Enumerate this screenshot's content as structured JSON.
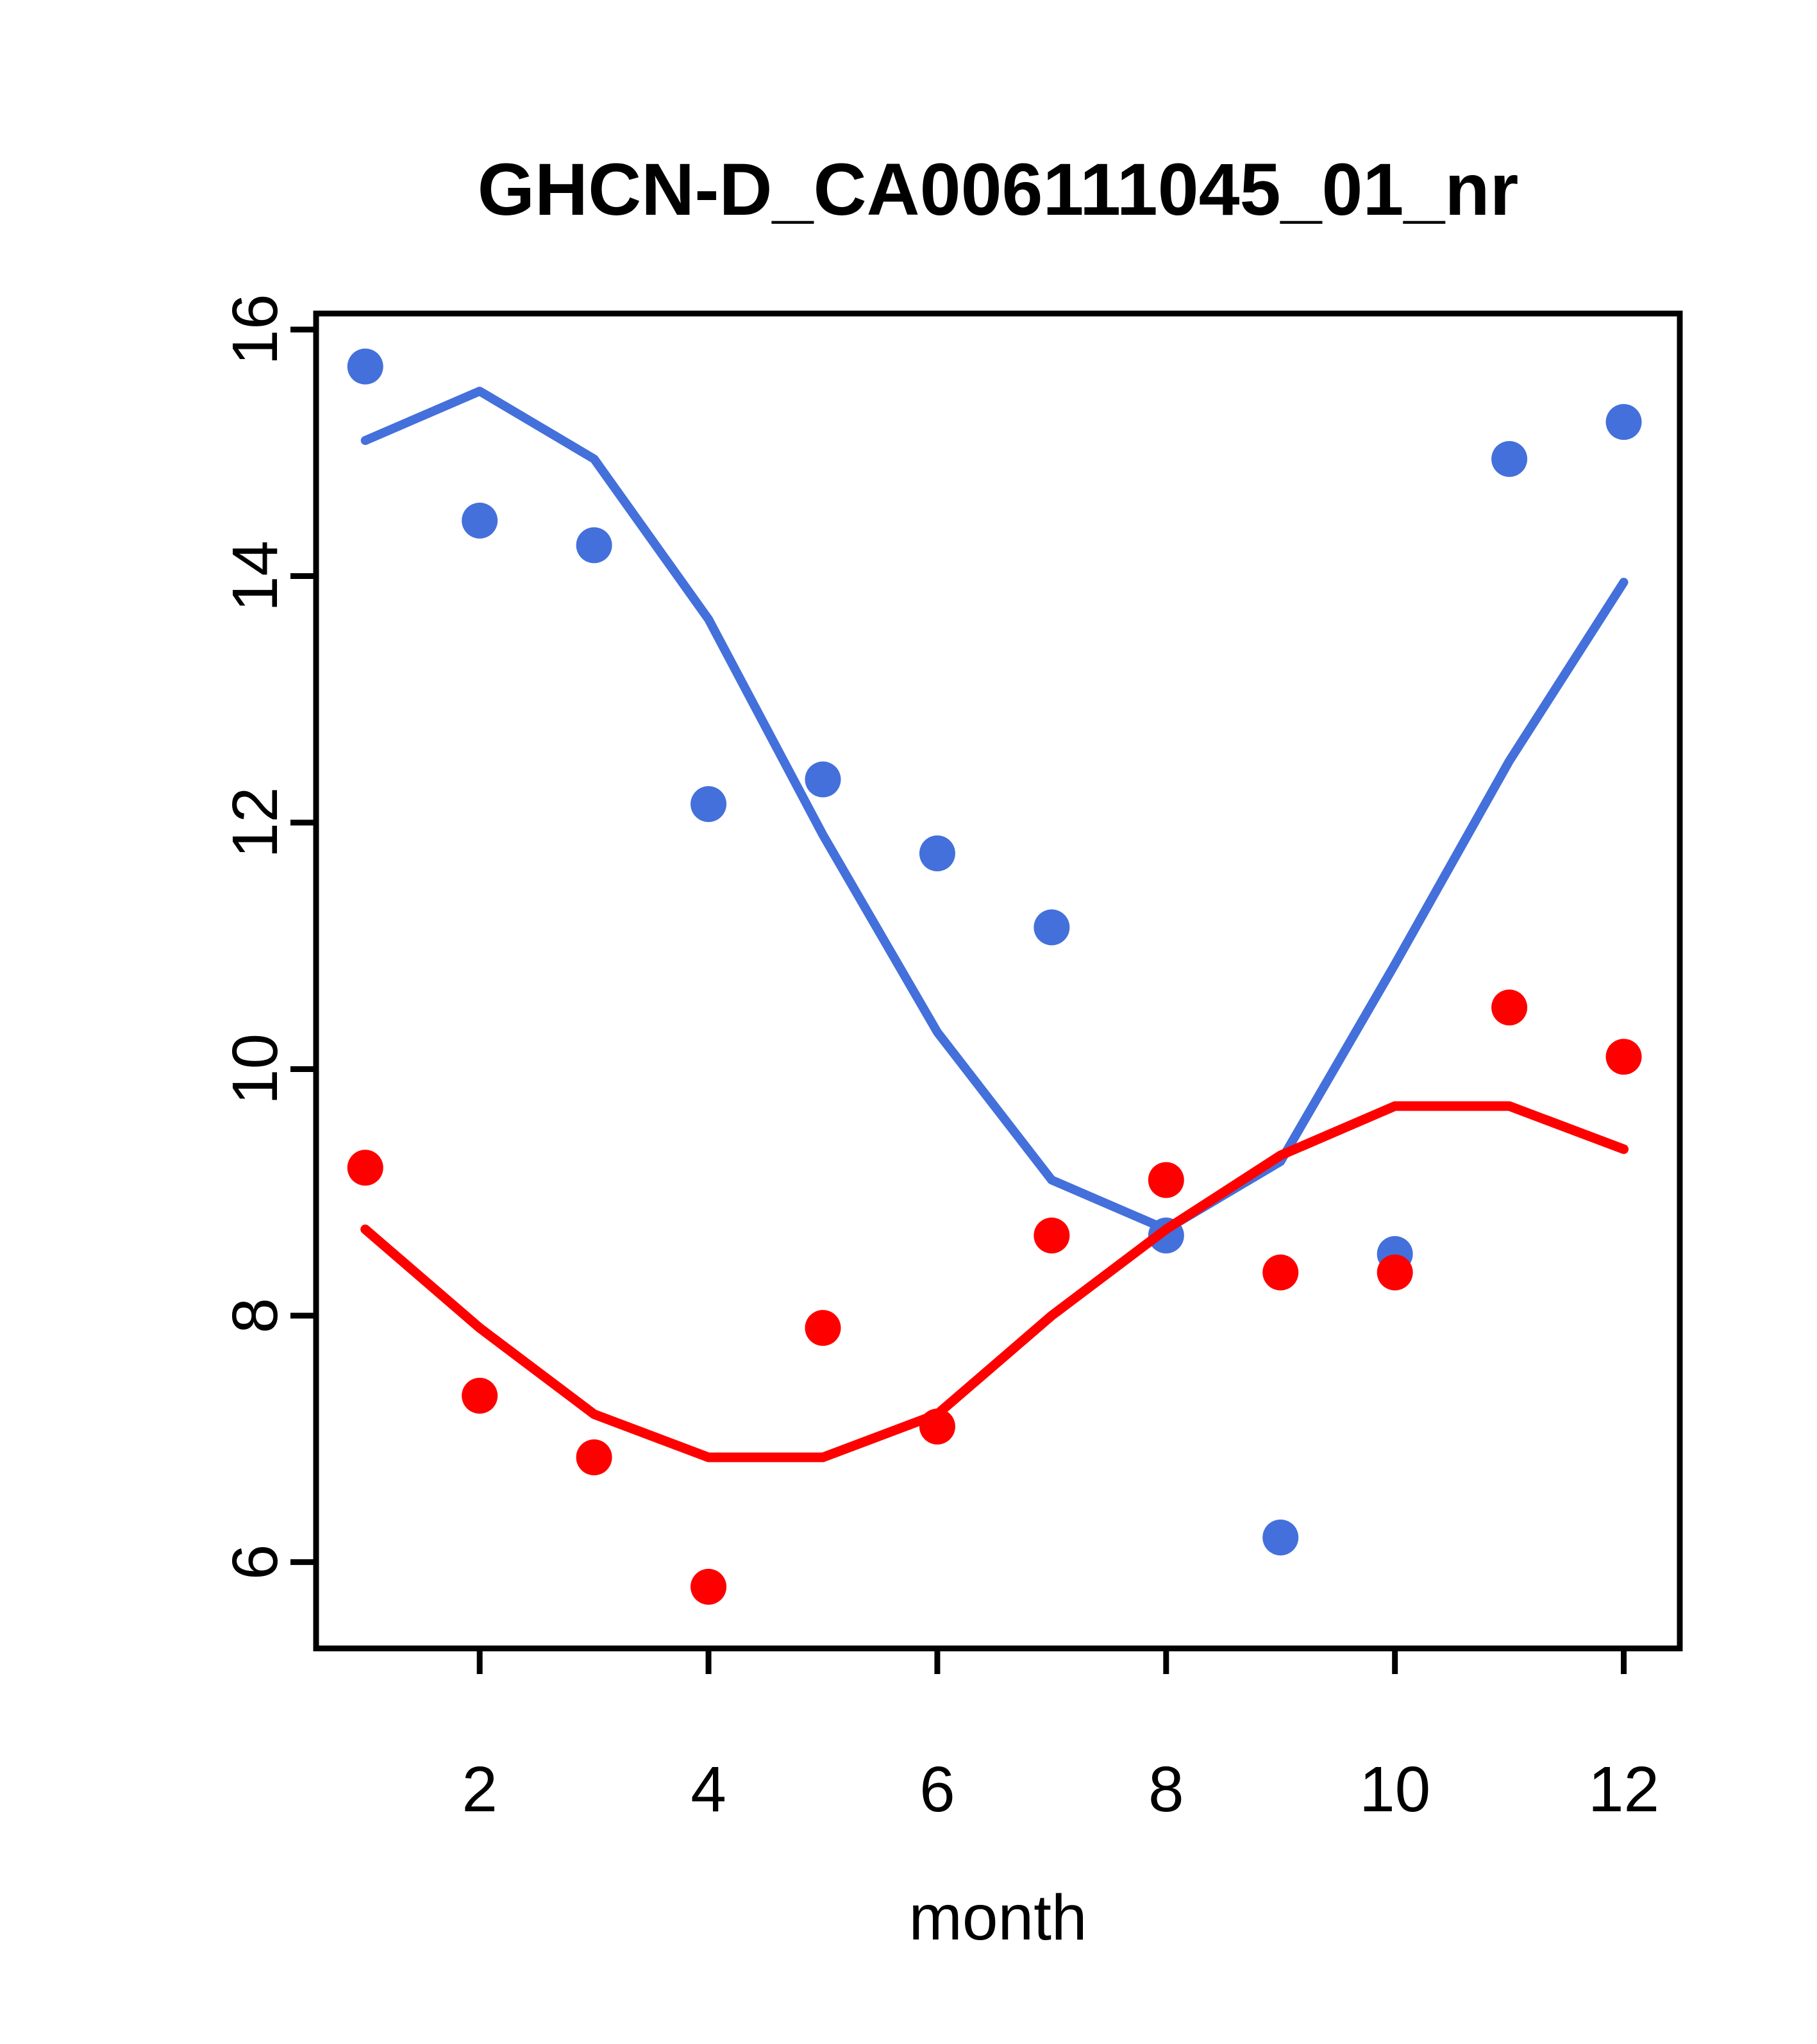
{
  "title": "GHCN-D_CA006111045_01_nr",
  "chart_data": {
    "type": "scatter",
    "title": "GHCN-D_CA006111045_01_nr",
    "xlabel": "month",
    "ylabel": "",
    "grid": false,
    "legend_position": "none",
    "x": [
      1,
      2,
      3,
      4,
      5,
      6,
      7,
      8,
      9,
      10,
      11,
      12
    ],
    "xticks": [
      2,
      4,
      6,
      8,
      10,
      12
    ],
    "yticks": [
      6,
      8,
      10,
      12,
      14,
      16
    ],
    "xlim": [
      0.57,
      12.49
    ],
    "ylim": [
      5.3,
      16.13
    ],
    "colors": {
      "blue": "#4470DB",
      "red": "#FF0000",
      "axis": "#000000"
    },
    "series": [
      {
        "name": "blue-points",
        "type": "scatter",
        "color": "#4470DB",
        "values": [
          15.7,
          14.45,
          14.25,
          12.15,
          12.35,
          11.75,
          11.15,
          8.65,
          6.2,
          8.5,
          14.95,
          15.25
        ]
      },
      {
        "name": "blue-smooth-line",
        "type": "line",
        "color": "#4470DB",
        "values": [
          15.1,
          15.5,
          14.95,
          13.65,
          11.9,
          10.3,
          9.1,
          8.7,
          9.25,
          10.85,
          12.5,
          13.95
        ]
      },
      {
        "name": "red-points",
        "type": "scatter",
        "color": "#FF0000",
        "values": [
          9.2,
          7.35,
          6.85,
          5.8,
          7.9,
          7.1,
          8.65,
          9.1,
          8.35,
          8.35,
          10.5,
          10.1
        ]
      },
      {
        "name": "red-smooth-line",
        "type": "line",
        "color": "#FF0000",
        "values": [
          8.7,
          7.9,
          7.2,
          6.85,
          6.85,
          7.2,
          8.0,
          8.7,
          9.3,
          9.7,
          9.7,
          9.35
        ]
      }
    ]
  }
}
